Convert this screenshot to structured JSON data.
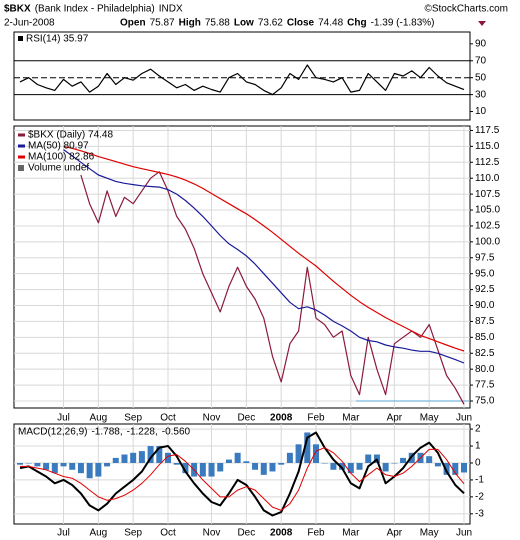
{
  "header": {
    "symbol": "$BKX",
    "name": "(Bank Index - Philadelphia)",
    "exchange": "INDX",
    "source": "©StockCharts.com",
    "date": "2-Jun-2008",
    "quote": [
      "Open",
      "75.87",
      "High",
      "75.88",
      "Low",
      "73.62",
      "Close",
      "74.48",
      "Chg",
      "-1.39 (-1.83%)"
    ]
  },
  "chart_data": [
    {
      "type": "line",
      "label": "RSI(14) 35.97",
      "ylim": [
        0,
        104
      ],
      "yticks": [
        90,
        70,
        50,
        30,
        10
      ],
      "grid": false,
      "reference_lines": [
        70,
        30
      ],
      "dashed_lines": [
        50
      ],
      "series": [
        {
          "color": "#000000",
          "values": [
            45,
            50,
            42,
            38,
            35,
            48,
            40,
            45,
            33,
            40,
            55,
            42,
            50,
            47,
            55,
            60,
            52,
            45,
            38,
            42,
            35,
            40,
            36,
            33,
            50,
            55,
            45,
            42,
            35,
            30,
            38,
            55,
            48,
            65,
            50,
            48,
            45,
            50,
            33,
            35,
            55,
            45,
            35,
            55,
            52,
            58,
            50,
            62,
            52,
            44,
            40,
            35.97
          ]
        }
      ]
    },
    {
      "type": "line",
      "ylim": [
        73.9,
        118.2
      ],
      "grid": true,
      "hline": 75,
      "hline_color": "#5aa6d6",
      "yticks": [
        {
          "value": 75,
          "label": "75.0"
        },
        77.5,
        {
          "value": 80,
          "label": "80.0"
        },
        82.5,
        {
          "value": 85,
          "label": "85.0"
        },
        87.5,
        {
          "value": 90,
          "label": "90.0"
        },
        92.5,
        {
          "value": 95,
          "label": "95.0"
        },
        97.5,
        {
          "value": 100,
          "label": "100.0"
        },
        102.5,
        {
          "value": 105,
          "label": "105.0"
        },
        107.5,
        {
          "value": 110,
          "label": "110.0"
        },
        112.5,
        {
          "value": 115,
          "label": "115.0"
        },
        117.5
      ],
      "categories": [
        null,
        null,
        null,
        null,
        null,
        "Jul",
        null,
        null,
        null,
        "Aug",
        null,
        null,
        null,
        "Sep",
        null,
        null,
        null,
        "Oct",
        null,
        null,
        null,
        null,
        "Nov",
        null,
        null,
        null,
        "Dec",
        null,
        null,
        null,
        "2008",
        null,
        null,
        null,
        "Feb",
        null,
        null,
        null,
        "Mar",
        null,
        null,
        null,
        null,
        "Apr",
        null,
        null,
        null,
        "May",
        null,
        null,
        null,
        "Jun"
      ],
      "extra_legend": "Volume undef",
      "series": [
        {
          "name": "$BKX (Daily) 74.48",
          "color": "#8b1a3a",
          "values": [
            null,
            null,
            null,
            null,
            null,
            null,
            null,
            110.5,
            106,
            103,
            108,
            104,
            107,
            106,
            108,
            110,
            111,
            108,
            104,
            102,
            99,
            95,
            92,
            89,
            93,
            96,
            93,
            91,
            88,
            82,
            78,
            84,
            86,
            96,
            88,
            87,
            85,
            86,
            79,
            76,
            85,
            80,
            76,
            84,
            85,
            86,
            85,
            87,
            83,
            79,
            77,
            74.48
          ]
        },
        {
          "name": "MA(50) 80.97",
          "color": "#1a1a9a",
          "values": [
            null,
            null,
            null,
            null,
            null,
            114.5,
            113.5,
            112.5,
            111.5,
            110.5,
            110,
            109.5,
            109.2,
            109,
            108.8,
            108.7,
            108.6,
            108.2,
            107.5,
            106.5,
            105.3,
            104,
            102.5,
            101,
            99.7,
            98.8,
            97.8,
            96.5,
            95,
            93.5,
            92,
            90.5,
            89.5,
            89.8,
            89.3,
            88.5,
            87.5,
            86.8,
            86,
            85,
            84.5,
            84.3,
            83.8,
            83.5,
            83.3,
            83,
            82.8,
            82.8,
            82.5,
            82,
            81.5,
            80.97
          ]
        },
        {
          "name": "MA(100) 82.86",
          "color": "#e00000",
          "values": [
            null,
            null,
            null,
            null,
            null,
            115,
            114.7,
            114.3,
            113.9,
            113.4,
            113,
            112.6,
            112.2,
            111.8,
            111.5,
            111.2,
            110.9,
            110.6,
            110.2,
            109.7,
            109.1,
            108.4,
            107.6,
            106.8,
            106,
            105.2,
            104.4,
            103.5,
            102.5,
            101.5,
            100.4,
            99.3,
            98.2,
            97.2,
            96.2,
            95,
            93.8,
            92.7,
            91.6,
            90.6,
            89.7,
            88.9,
            88.1,
            87.4,
            86.7,
            86,
            85.3,
            84.8,
            84.3,
            83.8,
            83.3,
            82.86
          ]
        }
      ]
    },
    {
      "type": "line",
      "ylim": [
        -3.6,
        2.3
      ],
      "yticks": [
        2,
        1,
        0,
        -1,
        -2,
        -3
      ],
      "grid": true,
      "legend_title": "MACD(12,26,9)",
      "categories": [
        null,
        null,
        null,
        null,
        null,
        "Jul",
        null,
        null,
        null,
        "Aug",
        null,
        null,
        null,
        "Sep",
        null,
        null,
        null,
        "Oct",
        null,
        null,
        null,
        null,
        "Nov",
        null,
        null,
        null,
        "Dec",
        null,
        null,
        null,
        "2008",
        null,
        null,
        null,
        "Feb",
        null,
        null,
        null,
        "Mar",
        null,
        null,
        null,
        null,
        "Apr",
        null,
        null,
        null,
        "May",
        null,
        null,
        null,
        "Jun"
      ],
      "series": [
        {
          "legend_label": "-1.788,",
          "color": "#000000",
          "width": 2,
          "values": [
            -0.3,
            -0.2,
            -0.5,
            -0.8,
            -1.2,
            -1.0,
            -1.3,
            -1.8,
            -2.5,
            -2.8,
            -2.4,
            -1.8,
            -1.4,
            -1.0,
            -0.5,
            0.3,
            0.9,
            1.0,
            0.4,
            -0.5,
            -1.2,
            -1.8,
            -2.3,
            -2.5,
            -1.8,
            -1.0,
            -1.3,
            -2.0,
            -2.8,
            -3.1,
            -2.9,
            -1.8,
            -0.5,
            1.5,
            1.8,
            0.9,
            0.2,
            -0.3,
            -1.2,
            -1.5,
            -0.2,
            0.2,
            -1.2,
            -0.8,
            -0.3,
            0.4,
            0.9,
            1.2,
            0.6,
            -0.5,
            -1.3,
            -1.788
          ]
        },
        {
          "legend_label": "-1.228,",
          "color": "#e00000",
          "width": 1,
          "values": [
            -0.2,
            -0.2,
            -0.3,
            -0.4,
            -0.6,
            -0.8,
            -0.9,
            -1.2,
            -1.6,
            -2.0,
            -2.2,
            -2.1,
            -1.9,
            -1.6,
            -1.2,
            -0.7,
            -0.1,
            0.4,
            0.5,
            0.1,
            -0.4,
            -1.0,
            -1.5,
            -2.0,
            -2.0,
            -1.6,
            -1.4,
            -1.6,
            -2.1,
            -2.6,
            -2.8,
            -2.4,
            -1.6,
            -0.3,
            0.7,
            0.9,
            0.6,
            0.1,
            -0.6,
            -1.1,
            -0.7,
            -0.3,
            -0.7,
            -0.8,
            -0.6,
            -0.2,
            0.3,
            0.8,
            0.8,
            0.2,
            -0.6,
            -1.228
          ]
        },
        {
          "legend_label": "-0.560",
          "color": "#3a7abf",
          "kind": "bar",
          "values": [
            -0.1,
            0,
            -0.2,
            -0.4,
            -0.6,
            -0.2,
            -0.4,
            -0.6,
            -0.9,
            -0.8,
            -0.2,
            0.3,
            0.5,
            0.6,
            0.7,
            1.0,
            1.0,
            0.6,
            -0.1,
            -0.6,
            -0.8,
            -0.8,
            -0.8,
            -0.5,
            0.2,
            0.6,
            0.1,
            -0.4,
            -0.7,
            -0.5,
            -0.1,
            0.6,
            1.1,
            1.8,
            1.1,
            0,
            -0.4,
            -0.4,
            -0.6,
            -0.4,
            0.5,
            0.5,
            -0.5,
            0,
            0.3,
            0.6,
            0.6,
            0.4,
            -0.2,
            -0.7,
            -0.7,
            -0.56
          ]
        }
      ]
    }
  ]
}
